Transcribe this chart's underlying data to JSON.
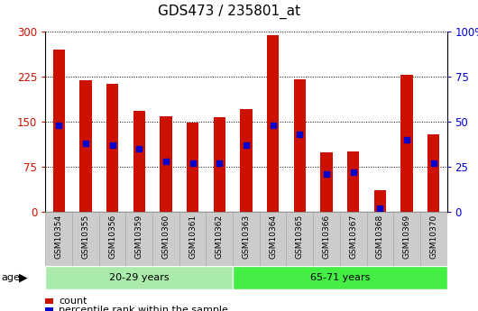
{
  "title": "GDS473 / 235801_at",
  "samples": [
    "GSM10354",
    "GSM10355",
    "GSM10356",
    "GSM10359",
    "GSM10360",
    "GSM10361",
    "GSM10362",
    "GSM10363",
    "GSM10364",
    "GSM10365",
    "GSM10366",
    "GSM10367",
    "GSM10368",
    "GSM10369",
    "GSM10370"
  ],
  "counts": [
    270,
    218,
    213,
    168,
    158,
    148,
    157,
    170,
    293,
    220,
    98,
    100,
    35,
    228,
    128
  ],
  "percentiles": [
    48,
    38,
    37,
    35,
    28,
    27,
    27,
    37,
    48,
    43,
    21,
    22,
    2,
    40,
    27
  ],
  "groups": [
    {
      "label": "20-29 years",
      "start": 0,
      "end": 7,
      "color": "#AAEAAA"
    },
    {
      "label": "65-71 years",
      "start": 7,
      "end": 15,
      "color": "#44EE44"
    }
  ],
  "bar_color": "#CC1100",
  "percentile_color": "#0000CC",
  "ylim_left": [
    0,
    300
  ],
  "ylim_right": [
    0,
    100
  ],
  "yticks_left": [
    0,
    75,
    150,
    225,
    300
  ],
  "yticks_right": [
    0,
    25,
    50,
    75,
    100
  ],
  "bg_color": "#FFFFFF",
  "xtick_bg_color": "#CCCCCC",
  "xtick_border_color": "#AAAAAA",
  "axis_label_color_left": "#CC1100",
  "axis_label_color_right": "#0000CC",
  "age_label": "age",
  "legend_count": "count",
  "legend_percentile": "percentile rank within the sample",
  "title_fontsize": 11
}
